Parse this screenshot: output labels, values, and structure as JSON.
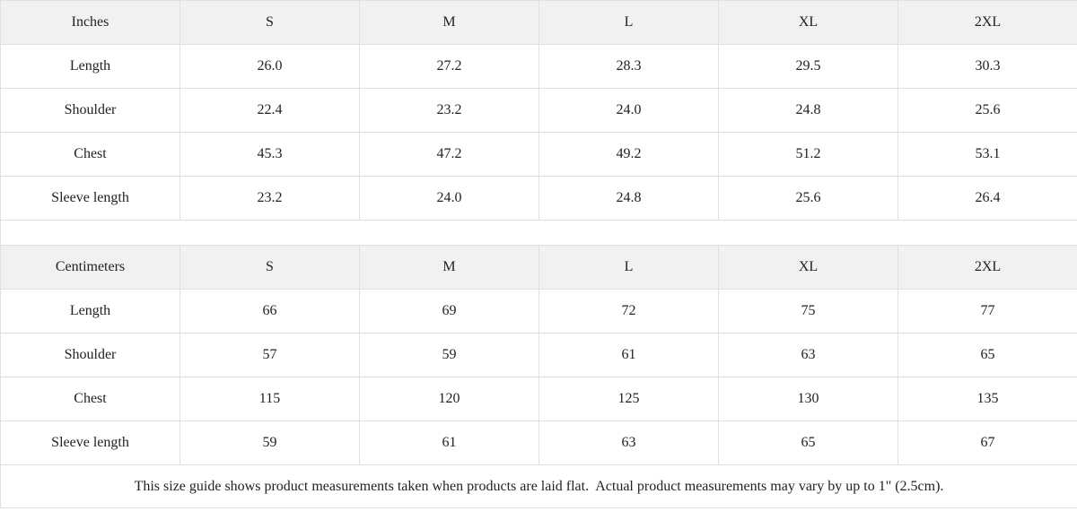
{
  "tables": [
    {
      "unit_label": "Inches",
      "sizes": [
        "S",
        "M",
        "L",
        "XL",
        "2XL"
      ],
      "rows": [
        {
          "label": "Length",
          "values": [
            "26.0",
            "27.2",
            "28.3",
            "29.5",
            "30.3"
          ]
        },
        {
          "label": "Shoulder",
          "values": [
            "22.4",
            "23.2",
            "24.0",
            "24.8",
            "25.6"
          ]
        },
        {
          "label": "Chest",
          "values": [
            "45.3",
            "47.2",
            "49.2",
            "51.2",
            "53.1"
          ]
        },
        {
          "label": "Sleeve length",
          "values": [
            "23.2",
            "24.0",
            "24.8",
            "25.6",
            "26.4"
          ]
        }
      ]
    },
    {
      "unit_label": "Centimeters",
      "sizes": [
        "S",
        "M",
        "L",
        "XL",
        "2XL"
      ],
      "rows": [
        {
          "label": "Length",
          "values": [
            "66",
            "69",
            "72",
            "75",
            "77"
          ]
        },
        {
          "label": "Shoulder",
          "values": [
            "57",
            "59",
            "61",
            "63",
            "65"
          ]
        },
        {
          "label": "Chest",
          "values": [
            "115",
            "120",
            "125",
            "130",
            "135"
          ]
        },
        {
          "label": "Sleeve length",
          "values": [
            "59",
            "61",
            "63",
            "65",
            "67"
          ]
        }
      ]
    }
  ],
  "footnote": "This size guide shows product measurements taken when products are laid flat.  Actual product measurements may vary by up to 1\" (2.5cm).",
  "colors": {
    "header_bg": "#f1f1f1",
    "border": "#e0e0e0",
    "text": "#222222"
  }
}
